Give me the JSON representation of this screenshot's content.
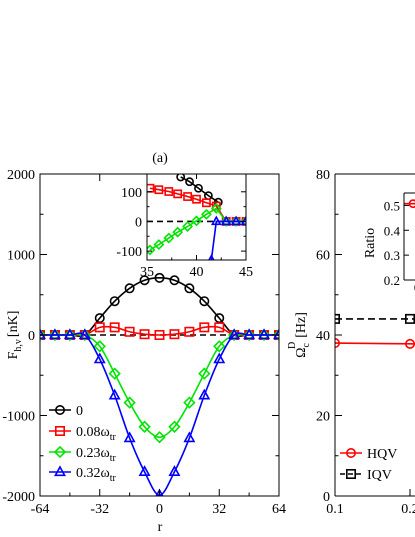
{
  "chart_data": [
    {
      "id": "left-main",
      "type": "line",
      "panel_label": "(a)",
      "xlabel": "r",
      "ylabel": "F",
      "ylabel_sub": "h,v",
      "ylabel_unit": "[nK]",
      "xlim": [
        -64,
        64
      ],
      "ylim": [
        -2000,
        2000
      ],
      "xticks": [
        "-64",
        "-32",
        "0",
        "32",
        "64"
      ],
      "xtick_values": [
        -64,
        -32,
        0,
        32,
        64
      ],
      "yticks": [
        "-2000",
        "-1000",
        "0",
        "1000",
        "2000"
      ],
      "ytick_values": [
        -2000,
        -1000,
        0,
        1000,
        2000
      ],
      "series": [
        {
          "name": "0",
          "name_sub": "",
          "color": "#000000",
          "marker": "circle",
          "points": [
            [
              -64,
              0
            ],
            [
              -56,
              0
            ],
            [
              -48,
              0
            ],
            [
              -40,
              0
            ],
            [
              -32,
              210
            ],
            [
              -24,
              420
            ],
            [
              -16,
              580
            ],
            [
              -8,
              680
            ],
            [
              0,
              710
            ],
            [
              8,
              680
            ],
            [
              16,
              580
            ],
            [
              24,
              420
            ],
            [
              32,
              210
            ],
            [
              40,
              0
            ],
            [
              48,
              0
            ],
            [
              56,
              0
            ],
            [
              64,
              0
            ]
          ]
        },
        {
          "name": "0.08ω",
          "name_sub": "tr",
          "color": "#ff0000",
          "marker": "square",
          "points": [
            [
              -64,
              0
            ],
            [
              -56,
              0
            ],
            [
              -48,
              0
            ],
            [
              -40,
              0
            ],
            [
              -32,
              95
            ],
            [
              -24,
              95
            ],
            [
              -16,
              40
            ],
            [
              -8,
              10
            ],
            [
              0,
              0
            ],
            [
              8,
              10
            ],
            [
              16,
              40
            ],
            [
              24,
              95
            ],
            [
              32,
              95
            ],
            [
              40,
              0
            ],
            [
              48,
              0
            ],
            [
              56,
              0
            ],
            [
              64,
              0
            ]
          ]
        },
        {
          "name": "0.23ω",
          "name_sub": "tr",
          "color": "#00e400",
          "marker": "diamond",
          "points": [
            [
              -64,
              0
            ],
            [
              -56,
              0
            ],
            [
              -48,
              0
            ],
            [
              -40,
              0
            ],
            [
              -32,
              -140
            ],
            [
              -24,
              -480
            ],
            [
              -16,
              -840
            ],
            [
              -8,
              -1140
            ],
            [
              0,
              -1270
            ],
            [
              8,
              -1140
            ],
            [
              16,
              -840
            ],
            [
              24,
              -480
            ],
            [
              32,
              -140
            ],
            [
              40,
              0
            ],
            [
              48,
              0
            ],
            [
              56,
              0
            ],
            [
              64,
              0
            ]
          ]
        },
        {
          "name": "0.32ω",
          "name_sub": "tr",
          "color": "#0000ff",
          "marker": "triangle",
          "points": [
            [
              -64,
              0
            ],
            [
              -56,
              0
            ],
            [
              -48,
              0
            ],
            [
              -40,
              0
            ],
            [
              -32,
              -300
            ],
            [
              -24,
              -750
            ],
            [
              -16,
              -1280
            ],
            [
              -8,
              -1700
            ],
            [
              0,
              -1990
            ],
            [
              8,
              -1700
            ],
            [
              16,
              -1280
            ],
            [
              24,
              -750
            ],
            [
              32,
              -300
            ],
            [
              40,
              0
            ],
            [
              48,
              0
            ],
            [
              56,
              0
            ],
            [
              64,
              0
            ]
          ]
        }
      ],
      "reference_line": {
        "y": 0,
        "style": "dashed",
        "color": "#000000"
      }
    },
    {
      "id": "left-inset",
      "type": "line",
      "xlim": [
        35,
        45
      ],
      "ylim": [
        -130,
        160
      ],
      "xticks": [
        "35",
        "40",
        "45"
      ],
      "xtick_values": [
        35,
        40,
        45
      ],
      "yticks": [
        "-100",
        "0",
        "100"
      ],
      "ytick_values": [
        -100,
        0,
        100
      ],
      "series": [
        {
          "name": "0",
          "color": "#000000",
          "marker": "circle",
          "points": [
            [
              38.4,
              150
            ],
            [
              39.3,
              134
            ],
            [
              40.2,
              112
            ],
            [
              41.2,
              87
            ],
            [
              42.2,
              65
            ]
          ]
        },
        {
          "name": "0.08ωtr",
          "color": "#ff0000",
          "marker": "square",
          "points": [
            [
              35.3,
              112
            ],
            [
              36.2,
              107
            ],
            [
              37.2,
              101
            ],
            [
              38.1,
              93
            ],
            [
              39.1,
              84
            ],
            [
              40.0,
              75
            ],
            [
              41.0,
              63
            ],
            [
              42.0,
              52
            ],
            [
              43.0,
              0
            ],
            [
              44.0,
              0
            ],
            [
              45.0,
              0
            ]
          ]
        },
        {
          "name": "0.23ωtr",
          "color": "#00e400",
          "marker": "diamond",
          "points": [
            [
              35.3,
              -96
            ],
            [
              36.2,
              -78
            ],
            [
              37.2,
              -56
            ],
            [
              38.1,
              -36
            ],
            [
              39.1,
              -17
            ],
            [
              40.0,
              2
            ],
            [
              41.0,
              24
            ],
            [
              42.0,
              44
            ],
            [
              43.0,
              0
            ],
            [
              44.0,
              0
            ],
            [
              45.0,
              0
            ]
          ]
        },
        {
          "name": "0.32ωtr",
          "color": "#0000ff",
          "marker": "triangle",
          "points": [
            [
              40.6,
              -200
            ],
            [
              41.5,
              -130
            ],
            [
              42.0,
              0
            ],
            [
              43.0,
              0
            ],
            [
              44.0,
              0
            ],
            [
              45.0,
              0
            ]
          ]
        }
      ],
      "reference_line": {
        "y": 0,
        "style": "dashed",
        "color": "#000000"
      }
    },
    {
      "id": "right-main",
      "type": "line",
      "ylabel": "Ω",
      "ylabel_sup": "D",
      "ylabel_sub": "c",
      "ylabel_unit": "[Hz]",
      "xlim": [
        0.1,
        0.55
      ],
      "ylim": [
        0,
        80
      ],
      "xticks": [
        "0.1",
        "0.2"
      ],
      "xtick_values": [
        0.1,
        0.2
      ],
      "yticks": [
        "0",
        "20",
        "40",
        "60",
        "80"
      ],
      "ytick_values": [
        0,
        20,
        40,
        60,
        80
      ],
      "series": [
        {
          "name": "HQV",
          "color": "#ff0000",
          "marker": "circle",
          "style": "solid",
          "points": [
            [
              0.1,
              38
            ],
            [
              0.2,
              37.8
            ],
            [
              0.3,
              37.6
            ]
          ]
        },
        {
          "name": "IQV",
          "color": "#000000",
          "marker": "square",
          "style": "dashed",
          "points": [
            [
              0.1,
              44
            ],
            [
              0.2,
              44
            ],
            [
              0.3,
              44
            ]
          ]
        }
      ]
    },
    {
      "id": "right-inset",
      "type": "line",
      "ylabel": "Ratio",
      "xlim": [
        0.1,
        0.3
      ],
      "ylim": [
        0.2,
        0.55
      ],
      "xticks": [
        "0.2"
      ],
      "xtick_values": [
        0.2
      ],
      "yticks": [
        "0.2",
        "0.3",
        "0.4",
        "0.5"
      ],
      "ytick_values": [
        0.2,
        0.3,
        0.4,
        0.5
      ],
      "series": [
        {
          "name": "Ratio",
          "color": "#ff0000",
          "marker": "circle",
          "points": [
            [
              0.1,
              0.507
            ],
            [
              0.2,
              0.507
            ],
            [
              0.3,
              0.507
            ]
          ]
        }
      ]
    }
  ]
}
